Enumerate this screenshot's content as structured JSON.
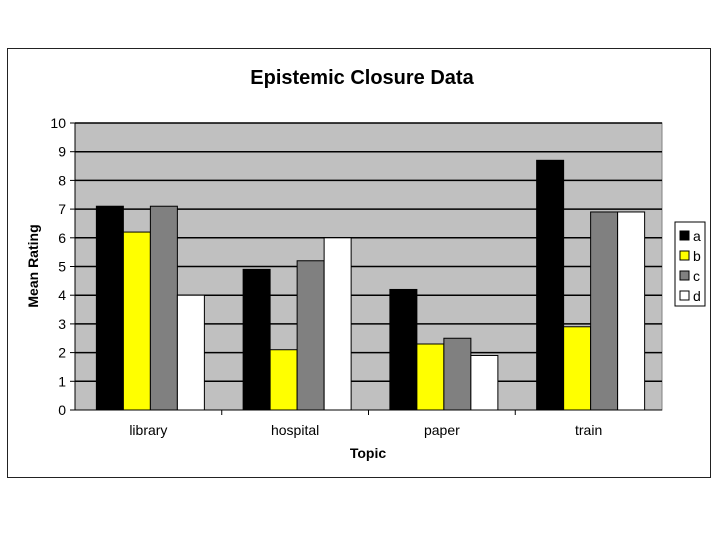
{
  "chart_data": {
    "type": "bar",
    "title": "Epistemic Closure Data",
    "xlabel": "Topic",
    "ylabel": "Mean Rating",
    "categories": [
      "library",
      "hospital",
      "paper",
      "train"
    ],
    "series": [
      {
        "name": "a",
        "values": [
          7.1,
          4.9,
          4.2,
          8.7
        ],
        "color": "#000000"
      },
      {
        "name": "b",
        "values": [
          6.2,
          2.1,
          2.3,
          2.9
        ],
        "color": "#ffff00"
      },
      {
        "name": "c",
        "values": [
          7.1,
          5.2,
          2.5,
          6.9
        ],
        "color": "#808080"
      },
      {
        "name": "d",
        "values": [
          4.0,
          6.0,
          1.9,
          6.9
        ],
        "color": "#ffffff"
      }
    ],
    "ylim": [
      0,
      10
    ],
    "yticks": [
      0,
      1,
      2,
      3,
      4,
      5,
      6,
      7,
      8,
      9,
      10
    ],
    "grid": true,
    "plot_background": "#c0c0c0",
    "legend": "right"
  }
}
